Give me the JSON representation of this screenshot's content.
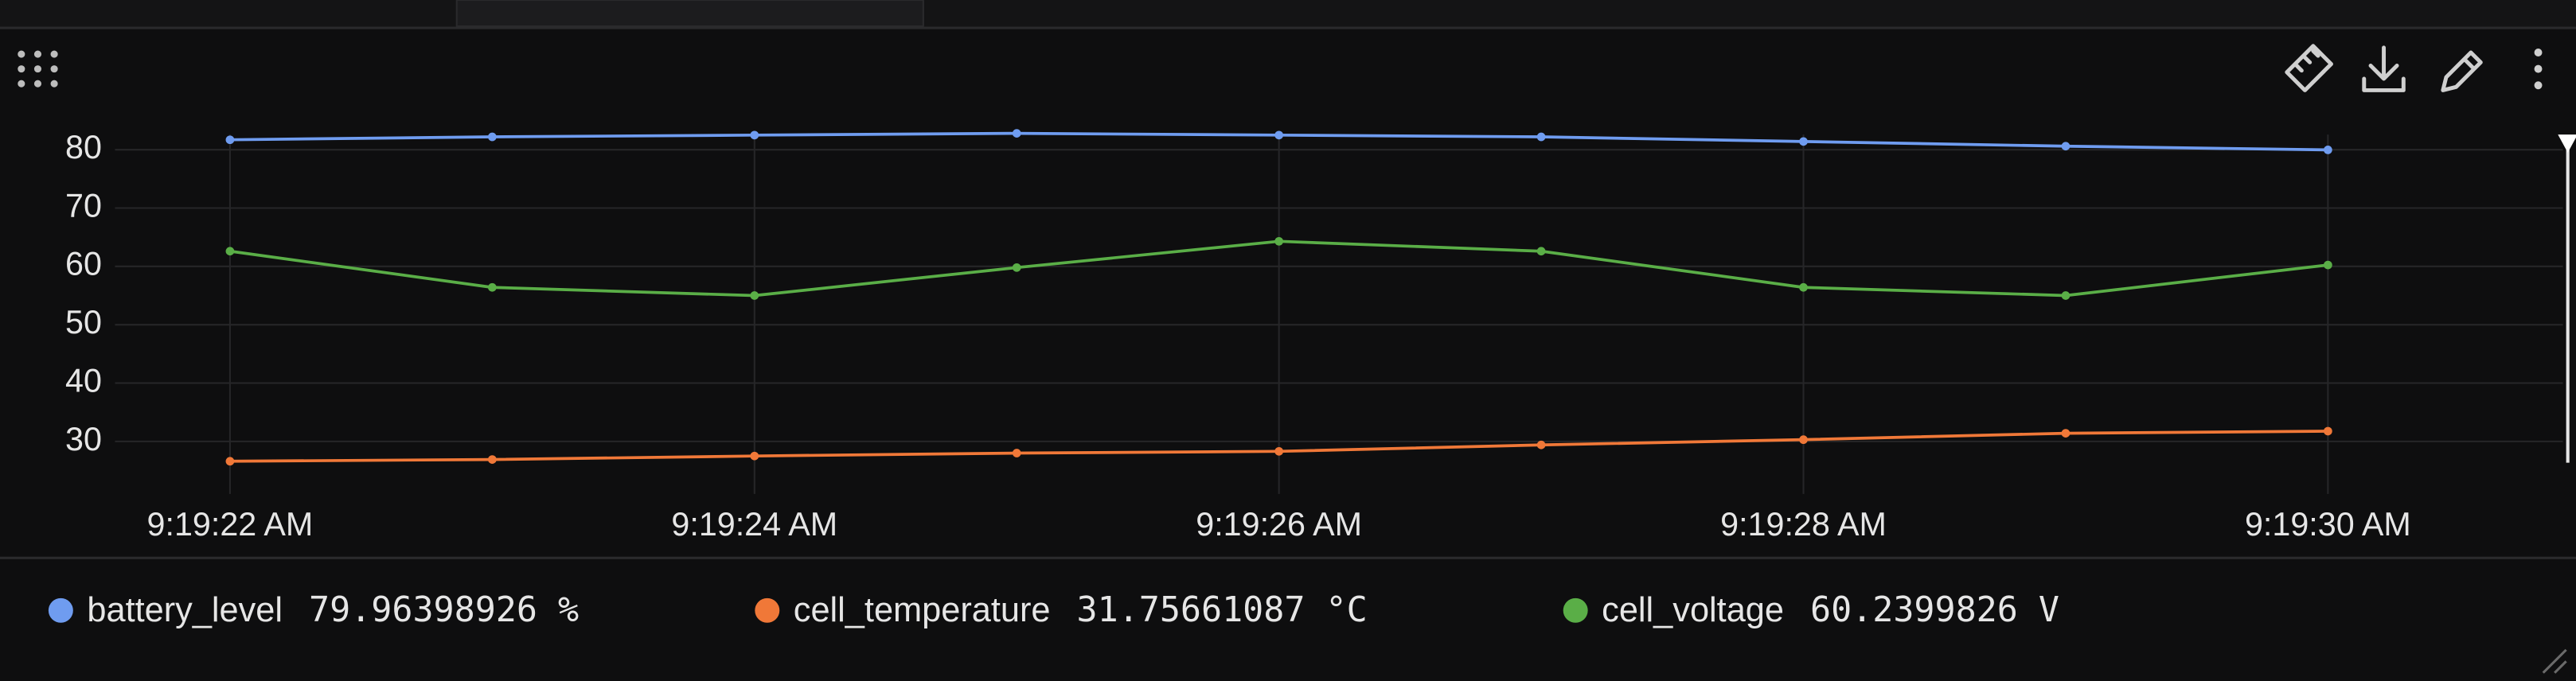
{
  "chart_data": {
    "type": "line",
    "x": [
      "9:19:22 AM",
      "9:19:23 AM",
      "9:19:24 AM",
      "9:19:25 AM",
      "9:19:26 AM",
      "9:19:27 AM",
      "9:19:28 AM",
      "9:19:29 AM",
      "9:19:30 AM"
    ],
    "xticks": [
      "9:19:22 AM",
      "9:19:24 AM",
      "9:19:26 AM",
      "9:19:28 AM",
      "9:19:30 AM"
    ],
    "ylim": [
      21,
      84
    ],
    "yticks": [
      30,
      40,
      50,
      60,
      70,
      80
    ],
    "grid": true,
    "series": [
      {
        "name": "battery_level",
        "color": "#6f9cf0",
        "legend_value": "79.96398926 %",
        "values": [
          81.7,
          82.2,
          82.5,
          82.8,
          82.5,
          82.2,
          81.4,
          80.6,
          79.96398926
        ]
      },
      {
        "name": "cell_temperature",
        "color": "#f07838",
        "legend_value": "31.75661087 °C",
        "values": [
          26.6,
          26.9,
          27.5,
          28.0,
          28.3,
          29.4,
          30.3,
          31.4,
          31.75661087
        ]
      },
      {
        "name": "cell_voltage",
        "color": "#5aae47",
        "legend_value": "60.2399826 V",
        "values": [
          62.6,
          56.4,
          55.0,
          59.8,
          64.3,
          62.6,
          56.4,
          55.0,
          60.2399826
        ]
      }
    ]
  }
}
